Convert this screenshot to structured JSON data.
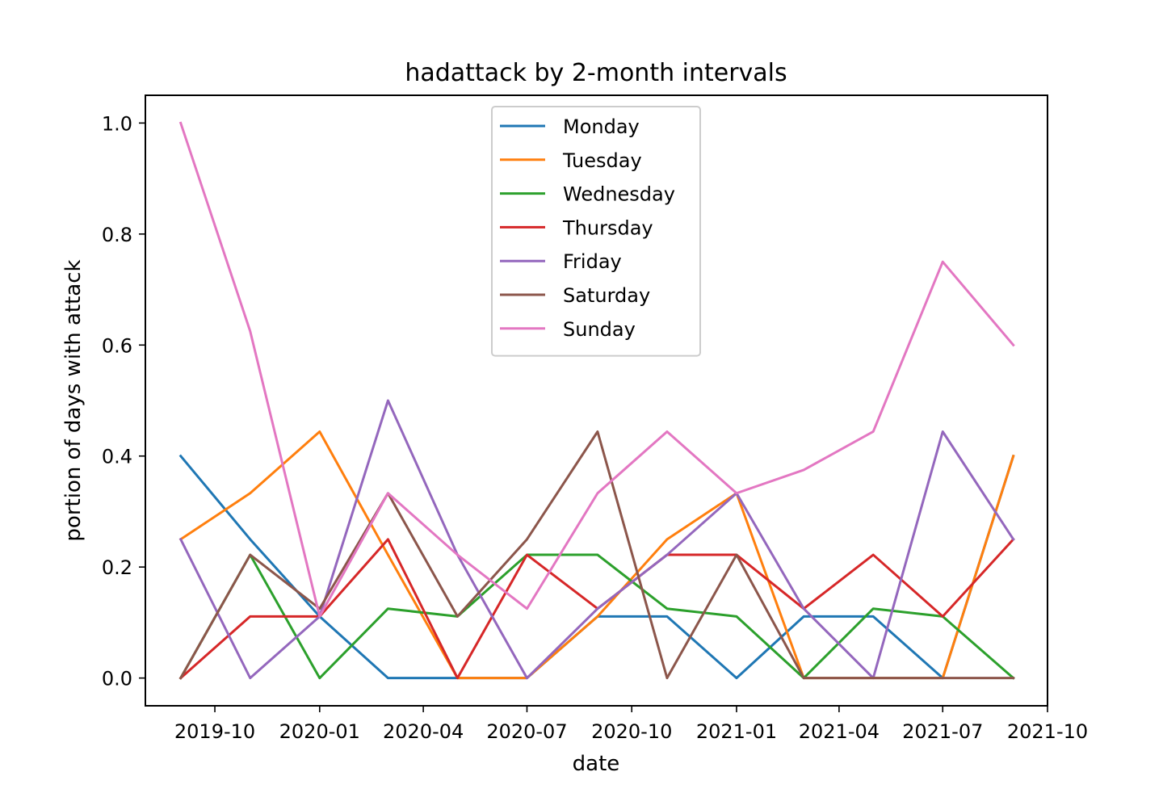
{
  "chart_data": {
    "type": "line",
    "title": "hadattack by 2-month intervals",
    "xlabel": "date",
    "ylabel": "portion of days with attack",
    "x": [
      "2019-09-01",
      "2019-11-01",
      "2020-01-01",
      "2020-03-01",
      "2020-05-01",
      "2020-07-01",
      "2020-09-01",
      "2020-11-01",
      "2021-01-01",
      "2021-03-01",
      "2021-05-01",
      "2021-07-01",
      "2021-09-01"
    ],
    "xlim": [
      "2019-08-01",
      "2021-10-01"
    ],
    "xticks": [
      "2019-10",
      "2020-01",
      "2020-04",
      "2020-07",
      "2020-10",
      "2021-01",
      "2021-04",
      "2021-07",
      "2021-10"
    ],
    "ylim": [
      -0.05,
      1.05
    ],
    "yticks": [
      "0.0",
      "0.2",
      "0.4",
      "0.6",
      "0.8",
      "1.0"
    ],
    "grid": false,
    "legend_position": "top-center",
    "series": [
      {
        "name": "Monday",
        "color": "#1f77b4",
        "values": [
          0.4,
          0.25,
          0.111,
          0,
          0,
          0,
          0.111,
          0.111,
          0,
          0.111,
          0.111,
          0,
          0.4
        ]
      },
      {
        "name": "Tuesday",
        "color": "#ff7f0e",
        "values": [
          0.25,
          0.333,
          0.444,
          0.222,
          0,
          0,
          0.111,
          0.25,
          0.333,
          0,
          0,
          0,
          0.4
        ]
      },
      {
        "name": "Wednesday",
        "color": "#2ca02c",
        "values": [
          0,
          0.222,
          0,
          0.125,
          0.111,
          0.222,
          0.222,
          0.125,
          0.111,
          0,
          0.125,
          0.111,
          0
        ]
      },
      {
        "name": "Thursday",
        "color": "#d62728",
        "values": [
          0,
          0.111,
          0.111,
          0.25,
          0,
          0.222,
          0.125,
          0.222,
          0.222,
          0.125,
          0.222,
          0.111,
          0.25
        ]
      },
      {
        "name": "Friday",
        "color": "#9467bd",
        "values": [
          0.25,
          0,
          0.111,
          0.5,
          0.222,
          0,
          0.125,
          0.222,
          0.333,
          0.125,
          0,
          0.444,
          0.25
        ]
      },
      {
        "name": "Saturday",
        "color": "#8c564b",
        "values": [
          0,
          0.222,
          0.125,
          0.333,
          0.111,
          0.25,
          0.444,
          0,
          0.222,
          0,
          0,
          0,
          0
        ]
      },
      {
        "name": "Sunday",
        "color": "#e377c2",
        "values": [
          1.0,
          0.625,
          0.111,
          0.333,
          0.222,
          0.125,
          0.333,
          0.444,
          0.333,
          0.375,
          0.444,
          0.75,
          0.6
        ]
      }
    ]
  }
}
